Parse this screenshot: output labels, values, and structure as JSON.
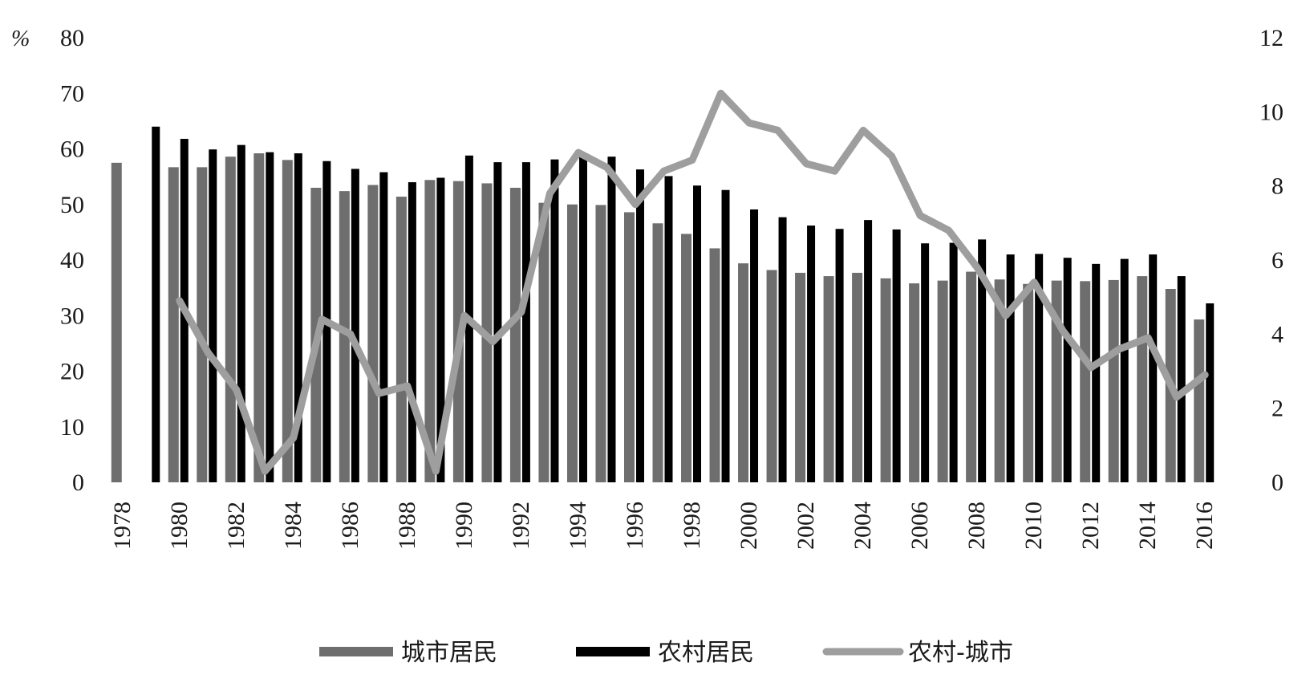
{
  "chart_data": {
    "type": "bar",
    "y_unit_label": "%",
    "xlabel": "",
    "ylabel": "",
    "x": [
      1978,
      1979,
      1980,
      1981,
      1982,
      1983,
      1984,
      1985,
      1986,
      1987,
      1988,
      1989,
      1990,
      1991,
      1992,
      1993,
      1994,
      1995,
      1996,
      1997,
      1998,
      1999,
      2000,
      2001,
      2002,
      2003,
      2004,
      2005,
      2006,
      2007,
      2008,
      2009,
      2010,
      2011,
      2012,
      2013,
      2014,
      2015,
      2016
    ],
    "x_tick_labels": [
      "1978",
      "1980",
      "1982",
      "1984",
      "1986",
      "1988",
      "1990",
      "1992",
      "1994",
      "1996",
      "1998",
      "2000",
      "2002",
      "2004",
      "2006",
      "2008",
      "2010",
      "2012",
      "2014",
      "2016"
    ],
    "y_left": {
      "min": 0,
      "max": 80,
      "ticks": [
        "0",
        "10",
        "20",
        "30",
        "40",
        "50",
        "60",
        "70",
        "80"
      ]
    },
    "y_right": {
      "min": 0,
      "max": 12,
      "ticks": [
        "0",
        "2",
        "4",
        "6",
        "8",
        "10",
        "12"
      ]
    },
    "legend_position": "bottom",
    "series": [
      {
        "name": "城市居民",
        "type": "bar",
        "axis": "left",
        "color": "#6e6e6e",
        "values": [
          57.5,
          null,
          56.7,
          56.7,
          58.6,
          59.2,
          58.0,
          53.0,
          52.4,
          53.5,
          51.4,
          54.4,
          54.2,
          53.8,
          53.0,
          50.3,
          50.0,
          49.9,
          48.6,
          46.6,
          44.7,
          42.1,
          39.4,
          38.2,
          37.7,
          37.1,
          37.7,
          36.7,
          35.8,
          36.3,
          37.9,
          36.5,
          35.7,
          36.3,
          36.2,
          36.4,
          37.1,
          34.8,
          29.3
        ]
      },
      {
        "name": "农村居民",
        "type": "bar",
        "axis": "left",
        "color": "#000000",
        "values": [
          null,
          64.0,
          61.8,
          59.9,
          60.7,
          59.4,
          59.2,
          57.8,
          56.4,
          55.8,
          54.0,
          54.8,
          58.8,
          57.6,
          57.6,
          58.1,
          58.9,
          58.6,
          56.3,
          55.1,
          53.4,
          52.6,
          49.1,
          47.7,
          46.2,
          45.6,
          47.2,
          45.5,
          43.0,
          43.1,
          43.7,
          41.0,
          41.1,
          40.4,
          39.3,
          40.2,
          41.0,
          37.1,
          32.2
        ]
      },
      {
        "name": "农村-城市",
        "type": "line",
        "axis": "right",
        "color": "#9e9e9e",
        "values": [
          null,
          null,
          4.9,
          3.5,
          2.5,
          0.3,
          1.2,
          4.4,
          4.0,
          2.4,
          2.6,
          0.3,
          4.5,
          3.8,
          4.6,
          7.8,
          8.9,
          8.5,
          7.5,
          8.4,
          8.7,
          10.5,
          9.7,
          9.5,
          8.6,
          8.4,
          9.5,
          8.8,
          7.2,
          6.8,
          5.8,
          4.5,
          5.4,
          4.1,
          3.1,
          3.6,
          3.9,
          2.3,
          2.9
        ]
      }
    ]
  }
}
